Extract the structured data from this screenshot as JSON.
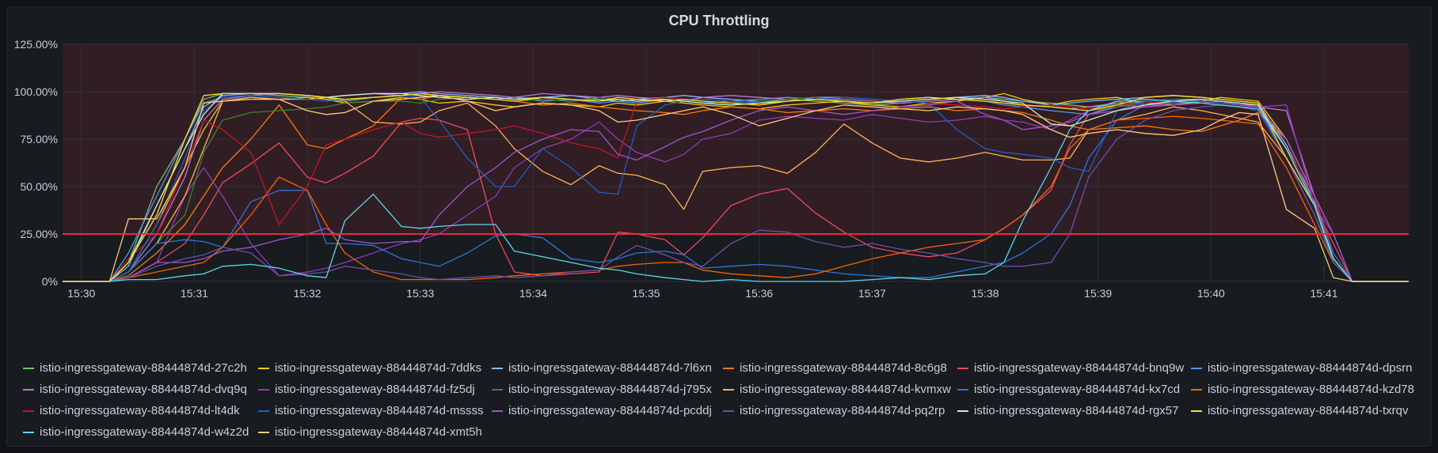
{
  "panel": {
    "title": "CPU Throttling"
  },
  "colors": {
    "threshold": "#e02f44",
    "threshold_fill": "rgba(224,47,68,0.13)",
    "grid": "#2f3137",
    "axis_text": "#ccccdc"
  },
  "chart_data": {
    "type": "line",
    "title": "CPU Throttling",
    "xlabel": "",
    "ylabel": "",
    "x_ticks": [
      "15:30",
      "15:31",
      "15:32",
      "15:33",
      "15:34",
      "15:35",
      "15:36",
      "15:37",
      "15:38",
      "15:39",
      "15:40",
      "15:41"
    ],
    "y_ticks": [
      "0%",
      "25.00%",
      "50.00%",
      "75.00%",
      "100.00%",
      "125.00%"
    ],
    "xlim": [
      "15:29:50",
      "15:41:45"
    ],
    "ylim": [
      0,
      125
    ],
    "grid": true,
    "legend_position": "bottom",
    "threshold": {
      "value": 25,
      "fill": "above"
    },
    "x": [
      "15:29:50",
      "15:30:05",
      "15:30:15",
      "15:30:25",
      "15:30:40",
      "15:30:55",
      "15:31:05",
      "15:31:15",
      "15:31:30",
      "15:31:45",
      "15:32:00",
      "15:32:10",
      "15:32:20",
      "15:32:35",
      "15:32:50",
      "15:33:00",
      "15:33:10",
      "15:33:25",
      "15:33:40",
      "15:33:50",
      "15:34:05",
      "15:34:20",
      "15:34:35",
      "15:34:45",
      "15:34:55",
      "15:35:10",
      "15:35:20",
      "15:35:30",
      "15:35:45",
      "15:36:00",
      "15:36:15",
      "15:36:30",
      "15:36:45",
      "15:37:00",
      "15:37:15",
      "15:37:30",
      "15:37:45",
      "15:38:00",
      "15:38:10",
      "15:38:20",
      "15:38:35",
      "15:38:45",
      "15:38:55",
      "15:39:10",
      "15:39:25",
      "15:39:40",
      "15:39:55",
      "15:40:05",
      "15:40:15",
      "15:40:25",
      "15:40:40",
      "15:40:55",
      "15:41:05",
      "15:41:15",
      "15:41:35",
      "15:41:45"
    ],
    "series": [
      {
        "name": "istio-ingressgateway-88444874d-27c2h",
        "color": "#73bf69",
        "values": [
          0,
          0,
          0,
          10,
          50,
          75,
          96,
          99,
          99,
          98,
          97,
          96,
          95,
          97,
          98,
          99,
          98,
          97,
          96,
          97,
          96,
          95,
          96,
          95,
          94,
          96,
          95,
          94,
          93,
          94,
          96,
          95,
          94,
          93,
          94,
          95,
          96,
          97,
          96,
          95,
          94,
          93,
          92,
          94,
          95,
          96,
          96,
          95,
          94,
          93,
          70,
          40,
          10,
          0,
          0,
          0
        ]
      },
      {
        "name": "istio-ingressgateway-88444874d-7ddks",
        "color": "#f2cc0c",
        "values": [
          0,
          0,
          0,
          5,
          30,
          60,
          80,
          95,
          97,
          96,
          97,
          96,
          94,
          95,
          97,
          96,
          94,
          95,
          93,
          92,
          94,
          93,
          92,
          94,
          93,
          95,
          94,
          93,
          92,
          91,
          93,
          94,
          95,
          93,
          92,
          94,
          95,
          97,
          99,
          96,
          93,
          95,
          96,
          97,
          94,
          93,
          95,
          97,
          96,
          95,
          75,
          45,
          15,
          0,
          0,
          0
        ]
      },
      {
        "name": "istio-ingressgateway-88444874d-7l6xn",
        "color": "#8ab8ff",
        "values": [
          0,
          0,
          0,
          8,
          40,
          70,
          92,
          98,
          99,
          99,
          98,
          97,
          98,
          99,
          99,
          100,
          99,
          98,
          97,
          96,
          97,
          98,
          96,
          95,
          96,
          97,
          98,
          97,
          96,
          95,
          96,
          97,
          97,
          96,
          95,
          96,
          97,
          98,
          97,
          95,
          93,
          94,
          95,
          96,
          97,
          98,
          97,
          96,
          95,
          94,
          72,
          42,
          12,
          0,
          0,
          0
        ]
      },
      {
        "name": "istio-ingressgateway-88444874d-8c6g8",
        "color": "#ff780a",
        "values": [
          0,
          0,
          0,
          3,
          15,
          30,
          45,
          60,
          75,
          93,
          72,
          70,
          75,
          82,
          97,
          96,
          98,
          97,
          96,
          95,
          93,
          94,
          92,
          91,
          90,
          89,
          88,
          90,
          92,
          91,
          89,
          90,
          91,
          90,
          91,
          92,
          90,
          91,
          90,
          89,
          85,
          82,
          80,
          81,
          82,
          80,
          79,
          82,
          85,
          89,
          75,
          45,
          15,
          0,
          0,
          0
        ]
      },
      {
        "name": "istio-ingressgateway-88444874d-bnq9w",
        "color": "#f2495c",
        "values": [
          0,
          0,
          0,
          2,
          10,
          20,
          35,
          52,
          62,
          73,
          55,
          52,
          57,
          66,
          84,
          86,
          85,
          80,
          25,
          5,
          3,
          4,
          5,
          26,
          25,
          22,
          14,
          23,
          40,
          46,
          49,
          36,
          26,
          18,
          15,
          13,
          15,
          22,
          28,
          35,
          48,
          72,
          88,
          93,
          92,
          94,
          95,
          94,
          93,
          92,
          70,
          40,
          20,
          0,
          0,
          0
        ]
      },
      {
        "name": "istio-ingressgateway-88444874d-dpsrn",
        "color": "#5794f2",
        "values": [
          0,
          0,
          0,
          15,
          45,
          75,
          94,
          97,
          98,
          99,
          98,
          97,
          96,
          97,
          98,
          99,
          98,
          97,
          96,
          97,
          95,
          96,
          94,
          95,
          94,
          96,
          95,
          94,
          95,
          96,
          97,
          96,
          95,
          94,
          96,
          97,
          96,
          95,
          93,
          92,
          90,
          89,
          88,
          92,
          95,
          96,
          95,
          94,
          93,
          92,
          70,
          45,
          12,
          0,
          0,
          0
        ]
      },
      {
        "name": "istio-ingressgateway-88444874d-dvq9q",
        "color": "#b877d9",
        "values": [
          0,
          0,
          0,
          5,
          25,
          55,
          85,
          96,
          98,
          99,
          98,
          97,
          98,
          99,
          98,
          99,
          100,
          99,
          98,
          97,
          99,
          98,
          97,
          98,
          97,
          96,
          95,
          97,
          98,
          97,
          96,
          97,
          96,
          95,
          94,
          95,
          96,
          97,
          95,
          93,
          92,
          91,
          92,
          93,
          94,
          95,
          96,
          95,
          94,
          92,
          90,
          45,
          25,
          0,
          0,
          0
        ]
      },
      {
        "name": "istio-ingressgateway-88444874d-fz5dj",
        "color": "#8f3bb8",
        "values": [
          0,
          0,
          0,
          2,
          10,
          45,
          60,
          45,
          20,
          3,
          5,
          7,
          10,
          15,
          20,
          22,
          25,
          35,
          45,
          60,
          70,
          75,
          84,
          75,
          68,
          63,
          67,
          75,
          78,
          85,
          87,
          86,
          85,
          88,
          86,
          84,
          85,
          87,
          85,
          84,
          80,
          85,
          90,
          95,
          93,
          94,
          95,
          94,
          93,
          92,
          93,
          40,
          25,
          0,
          0,
          0
        ]
      },
      {
        "name": "istio-ingressgateway-88444874d-j795x",
        "color": "#37872d",
        "values": [
          0,
          0,
          0,
          5,
          20,
          35,
          68,
          85,
          89,
          90,
          91,
          92,
          94,
          95,
          95,
          94,
          96,
          97,
          96,
          95,
          96,
          95,
          97,
          96,
          95,
          97,
          96,
          95,
          94,
          95,
          96,
          97,
          95,
          94,
          96,
          97,
          96,
          95,
          94,
          93,
          92,
          91,
          90,
          92,
          94,
          95,
          96,
          95,
          94,
          93,
          70,
          40,
          12,
          0,
          0,
          0
        ]
      },
      {
        "name": "istio-ingressgateway-88444874d-kvmxw",
        "color": "#ffb357",
        "values": [
          0,
          0,
          0,
          5,
          20,
          45,
          70,
          95,
          97,
          96,
          96,
          97,
          95,
          84,
          83,
          84,
          90,
          94,
          82,
          70,
          58,
          51,
          61,
          57,
          56,
          51,
          38,
          58,
          60,
          61,
          57,
          68,
          83,
          73,
          65,
          63,
          65,
          68,
          66,
          64,
          64,
          65,
          80,
          85,
          88,
          92,
          90,
          88,
          86,
          84,
          65,
          40,
          15,
          0,
          0,
          0
        ]
      },
      {
        "name": "istio-ingressgateway-88444874d-kx7cd",
        "color": "#3274d9",
        "values": [
          0,
          0,
          0,
          5,
          20,
          22,
          21,
          18,
          42,
          48,
          48,
          20,
          20,
          19,
          12,
          10,
          8,
          15,
          24,
          25,
          23,
          12,
          10,
          12,
          15,
          16,
          14,
          7,
          8,
          9,
          8,
          6,
          4,
          3,
          2,
          2,
          5,
          8,
          10,
          15,
          25,
          40,
          65,
          85,
          93,
          94,
          95,
          94,
          93,
          92,
          65,
          35,
          12,
          0,
          0,
          0
        ]
      },
      {
        "name": "istio-ingressgateway-88444874d-kzd78",
        "color": "#fa6400",
        "values": [
          0,
          0,
          0,
          2,
          5,
          8,
          10,
          18,
          35,
          55,
          48,
          30,
          15,
          5,
          1,
          1,
          1,
          1,
          2,
          3,
          4,
          5,
          6,
          8,
          9,
          10,
          10,
          6,
          4,
          3,
          2,
          4,
          8,
          12,
          15,
          18,
          20,
          22,
          28,
          35,
          50,
          70,
          80,
          85,
          86,
          87,
          86,
          85,
          84,
          83,
          60,
          30,
          10,
          0,
          0,
          0
        ]
      },
      {
        "name": "istio-ingressgateway-88444874d-lt4dk",
        "color": "#c4162a",
        "values": [
          0,
          0,
          0,
          12,
          25,
          60,
          85,
          80,
          68,
          30,
          50,
          72,
          75,
          80,
          84,
          78,
          76,
          78,
          80,
          82,
          78,
          73,
          70,
          65,
          95,
          97,
          96,
          95,
          94,
          93,
          95,
          96,
          97,
          96,
          95,
          94,
          93,
          92,
          91,
          92,
          93,
          92,
          91,
          93,
          94,
          95,
          96,
          95,
          94,
          93,
          70,
          45,
          15,
          0,
          0,
          0
        ]
      },
      {
        "name": "istio-ingressgateway-88444874d-mssss",
        "color": "#1f60c4",
        "values": [
          0,
          0,
          0,
          5,
          30,
          65,
          90,
          97,
          98,
          97,
          96,
          95,
          96,
          97,
          98,
          97,
          85,
          65,
          50,
          50,
          70,
          60,
          47,
          46,
          82,
          93,
          95,
          96,
          95,
          94,
          95,
          96,
          97,
          96,
          95,
          94,
          80,
          70,
          68,
          67,
          65,
          60,
          58,
          90,
          95,
          96,
          95,
          94,
          93,
          92,
          65,
          40,
          15,
          0,
          0,
          0
        ]
      },
      {
        "name": "istio-ingressgateway-88444874d-pcddj",
        "color": "#a352cc",
        "values": [
          0,
          0,
          0,
          2,
          10,
          10,
          12,
          16,
          18,
          22,
          25,
          28,
          22,
          20,
          21,
          21,
          35,
          50,
          60,
          68,
          75,
          80,
          79,
          67,
          64,
          71,
          76,
          79,
          85,
          90,
          92,
          90,
          88,
          90,
          92,
          93,
          95,
          88,
          85,
          80,
          82,
          84,
          88,
          90,
          92,
          93,
          94,
          95,
          93,
          92,
          75,
          45,
          25,
          0,
          0,
          0
        ]
      },
      {
        "name": "istio-ingressgateway-88444874d-pq2rp",
        "color": "#6d4fa8",
        "values": [
          0,
          0,
          0,
          2,
          8,
          12,
          14,
          18,
          15,
          3,
          4,
          5,
          8,
          6,
          4,
          2,
          1,
          2,
          3,
          2,
          3,
          5,
          6,
          13,
          19,
          14,
          10,
          8,
          20,
          27,
          26,
          21,
          18,
          20,
          17,
          15,
          12,
          10,
          8,
          8,
          10,
          25,
          55,
          75,
          85,
          90,
          92,
          93,
          92,
          90,
          65,
          35,
          10,
          0,
          0,
          0
        ]
      },
      {
        "name": "istio-ingressgateway-88444874d-rgx57",
        "color": "#c8f2c2",
        "values": [
          0,
          0,
          0,
          10,
          40,
          70,
          88,
          99,
          99,
          99,
          98,
          97,
          98,
          99,
          99,
          98,
          97,
          96,
          97,
          96,
          97,
          96,
          95,
          96,
          95,
          96,
          95,
          94,
          93,
          94,
          95,
          96,
          95,
          94,
          95,
          96,
          97,
          96,
          95,
          94,
          83,
          82,
          85,
          90,
          93,
          95,
          96,
          95,
          94,
          93,
          70,
          40,
          12,
          0,
          0,
          0
        ]
      },
      {
        "name": "istio-ingressgateway-88444874d-txrqv",
        "color": "#fade2a",
        "values": [
          0,
          0,
          0,
          10,
          35,
          75,
          98,
          99,
          99,
          99,
          98,
          97,
          96,
          97,
          98,
          99,
          98,
          97,
          96,
          95,
          97,
          96,
          95,
          97,
          96,
          95,
          96,
          95,
          94,
          93,
          95,
          96,
          95,
          94,
          96,
          97,
          96,
          95,
          94,
          93,
          92,
          91,
          90,
          93,
          97,
          98,
          97,
          96,
          95,
          94,
          65,
          40,
          12,
          0,
          0,
          0
        ]
      },
      {
        "name": "istio-ingressgateway-88444874d-w4z2d",
        "color": "#5ad8e6",
        "values": [
          0,
          0,
          0,
          1,
          1,
          3,
          4,
          8,
          9,
          7,
          3,
          2,
          32,
          46,
          29,
          28,
          29,
          30,
          30,
          16,
          13,
          10,
          7,
          6,
          4,
          2,
          1,
          0,
          1,
          0,
          0,
          0,
          0,
          1,
          2,
          1,
          3,
          4,
          10,
          32,
          60,
          80,
          90,
          95,
          96,
          95,
          94,
          93,
          92,
          91,
          70,
          40,
          12,
          0,
          0,
          0
        ]
      },
      {
        "name": "istio-ingressgateway-88444874d-xmt5h",
        "color": "#ffcb7d",
        "values": [
          0,
          0,
          0,
          33,
          33,
          60,
          94,
          95,
          96,
          96,
          90,
          88,
          89,
          95,
          96,
          97,
          98,
          95,
          90,
          92,
          94,
          93,
          90,
          84,
          85,
          88,
          90,
          92,
          88,
          82,
          86,
          90,
          93,
          92,
          91,
          90,
          92,
          91,
          90,
          88,
          80,
          76,
          78,
          80,
          78,
          77,
          80,
          85,
          89,
          88,
          38,
          28,
          2,
          0,
          0,
          0
        ]
      }
    ]
  }
}
